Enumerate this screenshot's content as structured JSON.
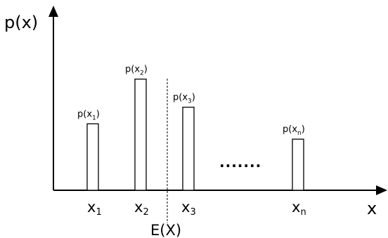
{
  "chart_data": {
    "type": "bar",
    "ylabel": "p(x)",
    "xlabel": "x",
    "categories": [
      "x1",
      "x2",
      "x3",
      "xn"
    ],
    "values": [
      0.52,
      0.87,
      0.65,
      0.4
    ],
    "ylim": [
      0,
      1
    ],
    "bar_labels": [
      {
        "base": "p(x",
        "sub": "1",
        "end": ")"
      },
      {
        "base": "p(x",
        "sub": "2",
        "end": ")"
      },
      {
        "base": "p(x",
        "sub": "3",
        "end": ")"
      },
      {
        "base": "p(x",
        "sub": "n",
        "end": ")"
      }
    ],
    "tick_labels": [
      {
        "base": "x",
        "sub": "1"
      },
      {
        "base": "x",
        "sub": "2"
      },
      {
        "base": "x",
        "sub": "3"
      },
      {
        "base": "x",
        "sub": "n"
      }
    ],
    "ellipsis": ".......",
    "mean_label": "E(X)",
    "grid": false,
    "legend": "none"
  }
}
